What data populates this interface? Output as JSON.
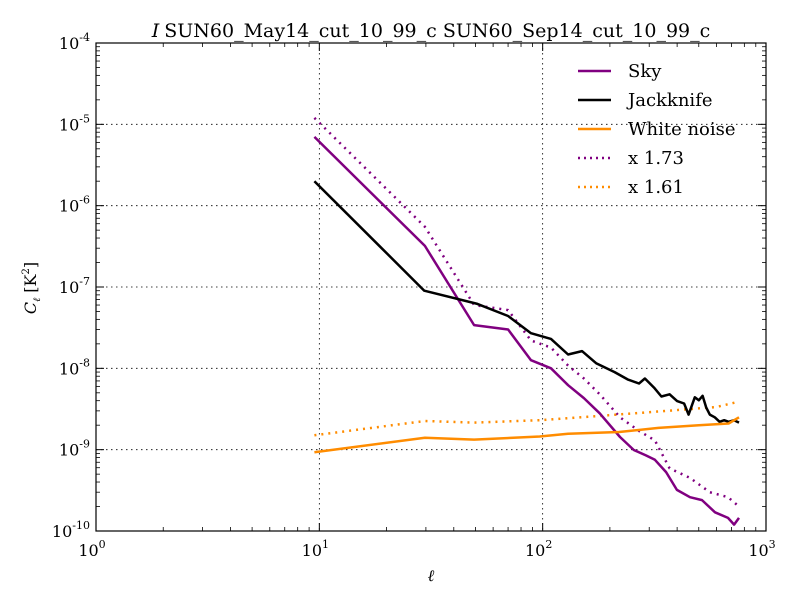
{
  "chart_data": {
    "type": "line",
    "title_italic": "I",
    "title": "SUN60_May14_cut_10_99_c SUN60_Sep14_cut_10_99_c",
    "xlabel": "ℓ",
    "ylabel_main": "C",
    "ylabel_sub": "ℓ",
    "ylabel_unit": "[K",
    "ylabel_sup": "2",
    "ylabel_close": "]",
    "xscale": "log",
    "yscale": "log",
    "xlim": [
      1,
      1000
    ],
    "ylim": [
      1e-10,
      0.0001
    ],
    "grid": true,
    "legend_position": "top-right",
    "x_ticks": [
      {
        "value": 1,
        "base": "10",
        "exp": "0"
      },
      {
        "value": 10,
        "base": "10",
        "exp": "1"
      },
      {
        "value": 100,
        "base": "10",
        "exp": "2"
      },
      {
        "value": 1000,
        "base": "10",
        "exp": "3"
      }
    ],
    "y_ticks": [
      {
        "value": 0.0001,
        "base": "10",
        "exp": "-4"
      },
      {
        "value": 1e-05,
        "base": "10",
        "exp": "-5"
      },
      {
        "value": 1e-06,
        "base": "10",
        "exp": "-6"
      },
      {
        "value": 1e-07,
        "base": "10",
        "exp": "-7"
      },
      {
        "value": 1e-08,
        "base": "10",
        "exp": "-8"
      },
      {
        "value": 1e-09,
        "base": "10",
        "exp": "-9"
      },
      {
        "value": 1e-10,
        "base": "10",
        "exp": "-10"
      }
    ],
    "series": [
      {
        "name": "Sky",
        "color": "#800080",
        "style": "solid",
        "x": [
          9.5,
          29.7,
          49.3,
          70,
          88.7,
          109,
          130,
          153,
          180,
          222,
          256,
          290,
          318,
          357,
          399,
          457,
          517,
          591,
          676,
          720,
          757
        ],
        "y": [
          7e-06,
          3.2e-07,
          3.4e-08,
          3e-08,
          1.26e-08,
          1e-08,
          6.2e-09,
          4.3e-09,
          2.8e-09,
          1.43e-09,
          9.9e-10,
          8.5e-10,
          7.5e-10,
          5.3e-10,
          3.2e-10,
          2.6e-10,
          2.4e-10,
          1.7e-10,
          1.45e-10,
          1.2e-10,
          1.45e-10
        ]
      },
      {
        "name": "Jackknife",
        "color": "#000000",
        "style": "solid",
        "x": [
          9.5,
          29.5,
          51,
          70,
          88.7,
          109,
          130,
          150,
          174,
          210,
          240,
          270,
          287,
          315,
          340,
          370,
          400,
          430,
          450,
          480,
          500,
          520,
          540,
          560,
          590,
          620,
          650,
          680,
          720,
          757
        ],
        "y": [
          2e-06,
          9e-08,
          6.2e-08,
          4.4e-08,
          2.7e-08,
          2.3e-08,
          1.48e-08,
          1.63e-08,
          1.15e-08,
          9e-09,
          7.3e-09,
          6.5e-09,
          7.5e-09,
          5.8e-09,
          4.5e-09,
          4.8e-09,
          3.95e-09,
          3.7e-09,
          2.7e-09,
          4.4e-09,
          4.05e-09,
          4.6e-09,
          3.3e-09,
          2.7e-09,
          2.5e-09,
          2.2e-09,
          2.3e-09,
          2.2e-09,
          2.3e-09,
          2.15e-09
        ]
      },
      {
        "name": "White noise",
        "color": "#ff8c00",
        "style": "solid",
        "x": [
          9.5,
          29.7,
          49.3,
          97,
          130,
          220,
          330,
          500,
          680,
          757
        ],
        "y": [
          9.3e-10,
          1.4e-09,
          1.33e-09,
          1.45e-09,
          1.57e-09,
          1.65e-09,
          1.85e-09,
          2e-09,
          2.1e-09,
          2.5e-09
        ]
      },
      {
        "name": "x 1.73",
        "color": "#800080",
        "style": "dotted",
        "x": [
          9.5,
          29.7,
          49.3,
          70,
          88.7,
          109,
          130,
          153,
          180,
          222,
          270,
          318,
          370,
          457,
          560,
          676,
          757
        ],
        "y": [
          1.2e-05,
          5.5e-07,
          6e-08,
          5.2e-08,
          2.2e-08,
          1.8e-08,
          1.08e-08,
          7.5e-09,
          4.8e-09,
          2.5e-09,
          1.7e-09,
          1.3e-09,
          5.9e-10,
          4.5e-10,
          3e-10,
          2.6e-10,
          2e-10
        ]
      },
      {
        "name": "x 1.61",
        "color": "#ff8c00",
        "style": "dotted",
        "x": [
          9.5,
          29.7,
          49.3,
          97,
          180,
          330,
          600,
          757
        ],
        "y": [
          1.5e-09,
          2.25e-09,
          2.15e-09,
          2.3e-09,
          2.6e-09,
          2.95e-09,
          3.35e-09,
          3.9e-09
        ]
      }
    ]
  }
}
